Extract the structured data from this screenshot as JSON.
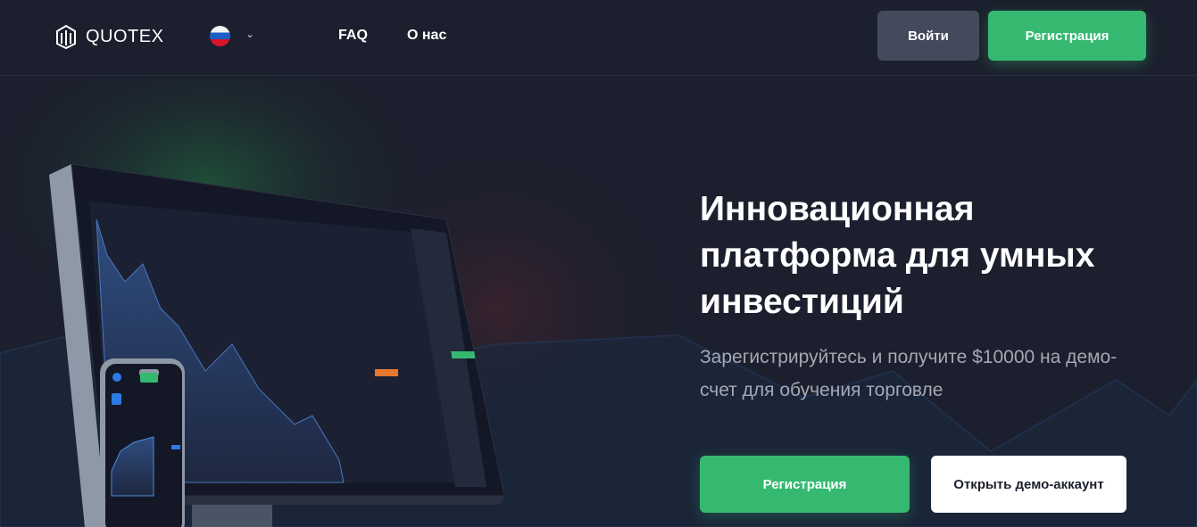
{
  "header": {
    "brand": "QUOTEX",
    "language": "ru",
    "nav": [
      {
        "label": "FAQ"
      },
      {
        "label": "О нас"
      }
    ],
    "login": "Войти",
    "register": "Регистрация"
  },
  "hero": {
    "title": "Инновационная платформа для умных инвестиций",
    "subtitle": "Зарегистрируйтесь и получите $10000 на демо-счет для обучения торговле",
    "register": "Регистрация",
    "demo": "Открыть демо-аккаунт"
  },
  "colors": {
    "background": "#1c1f2d",
    "accent": "#35b971",
    "secondary_button": "#434a5c"
  }
}
